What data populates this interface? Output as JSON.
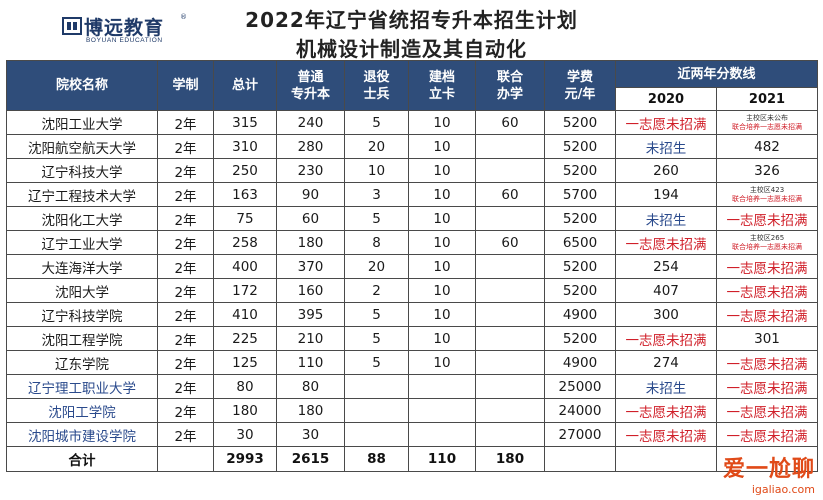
{
  "logo": {
    "name": "博远教育",
    "subtitle": "BOYUAN EDUCATION",
    "mark": "registered-mark"
  },
  "title": {
    "line1": "2022年辽宁省统招专升本招生计划",
    "line2": "机械设计制造及其自动化"
  },
  "header": {
    "school": "院校名称",
    "duration": "学制",
    "total": "总计",
    "regular": [
      "普通",
      "专升本"
    ],
    "veteran": [
      "退役",
      "士兵"
    ],
    "card": [
      "建档",
      "立卡"
    ],
    "joint": [
      "联合",
      "办学"
    ],
    "fee": [
      "学费",
      "元/年"
    ],
    "scores": "近两年分数线",
    "y2020": "2020",
    "y2021": "2021"
  },
  "rows": [
    {
      "school": "沈阳工业大学",
      "duration": "2年",
      "total": "315",
      "regular": "240",
      "veteran": "5",
      "card": "10",
      "joint": "60",
      "fee": "5200",
      "s2020": "一志愿未招满",
      "s2021": "",
      "s2021_note": [
        "主校区未公布",
        "联合培养一志愿未招满"
      ]
    },
    {
      "school": "沈阳航空航天大学",
      "duration": "2年",
      "total": "310",
      "regular": "280",
      "veteran": "20",
      "card": "10",
      "joint": "",
      "fee": "5200",
      "s2020": "未招生",
      "s2021": "482"
    },
    {
      "school": "辽宁科技大学",
      "duration": "2年",
      "total": "250",
      "regular": "230",
      "veteran": "10",
      "card": "10",
      "joint": "",
      "fee": "5200",
      "s2020": "260",
      "s2021": "326"
    },
    {
      "school": "辽宁工程技术大学",
      "duration": "2年",
      "total": "163",
      "regular": "90",
      "veteran": "3",
      "card": "10",
      "joint": "60",
      "fee": "5700",
      "s2020": "194",
      "s2021": "",
      "s2021_note": [
        "主校区423",
        "联合培养一志愿未招满"
      ]
    },
    {
      "school": "沈阳化工大学",
      "duration": "2年",
      "total": "75",
      "regular": "60",
      "veteran": "5",
      "card": "10",
      "joint": "",
      "fee": "5200",
      "s2020": "未招生",
      "s2021": "一志愿未招满"
    },
    {
      "school": "辽宁工业大学",
      "duration": "2年",
      "total": "258",
      "regular": "180",
      "veteran": "8",
      "card": "10",
      "joint": "60",
      "fee": "6500",
      "s2020": "一志愿未招满",
      "s2021": "",
      "s2021_note": [
        "主校区265",
        "联合培养一志愿未招满"
      ]
    },
    {
      "school": "大连海洋大学",
      "duration": "2年",
      "total": "400",
      "regular": "370",
      "veteran": "20",
      "card": "10",
      "joint": "",
      "fee": "5200",
      "s2020": "254",
      "s2021": "一志愿未招满"
    },
    {
      "school": "沈阳大学",
      "duration": "2年",
      "total": "172",
      "regular": "160",
      "veteran": "2",
      "card": "10",
      "joint": "",
      "fee": "5200",
      "s2020": "407",
      "s2021": "一志愿未招满"
    },
    {
      "school": "辽宁科技学院",
      "duration": "2年",
      "total": "410",
      "regular": "395",
      "veteran": "5",
      "card": "10",
      "joint": "",
      "fee": "4900",
      "s2020": "300",
      "s2021": "一志愿未招满"
    },
    {
      "school": "沈阳工程学院",
      "duration": "2年",
      "total": "225",
      "regular": "210",
      "veteran": "5",
      "card": "10",
      "joint": "",
      "fee": "5200",
      "s2020": "一志愿未招满",
      "s2021": "301"
    },
    {
      "school": "辽东学院",
      "duration": "2年",
      "total": "125",
      "regular": "110",
      "veteran": "5",
      "card": "10",
      "joint": "",
      "fee": "4900",
      "s2020": "274",
      "s2021": "一志愿未招满"
    },
    {
      "school": "辽宁理工职业大学",
      "duration": "2年",
      "total": "80",
      "regular": "80",
      "veteran": "",
      "card": "",
      "joint": "",
      "fee": "25000",
      "s2020": "未招生",
      "s2021": "一志愿未招满"
    },
    {
      "school": "沈阳工学院",
      "duration": "2年",
      "total": "180",
      "regular": "180",
      "veteran": "",
      "card": "",
      "joint": "",
      "fee": "24000",
      "s2020": "一志愿未招满",
      "s2021": "一志愿未招满"
    },
    {
      "school": "沈阳城市建设学院",
      "duration": "2年",
      "total": "30",
      "regular": "30",
      "veteran": "",
      "card": "",
      "joint": "",
      "fee": "27000",
      "s2020": "一志愿未招满",
      "s2021": "一志愿未招满"
    }
  ],
  "blue_schools": [
    "辽宁理工职业大学",
    "沈阳工学院",
    "沈阳城市建设学院"
  ],
  "totals": {
    "label": "合计",
    "total": "2993",
    "regular": "2615",
    "veteran": "88",
    "card": "110",
    "joint": "180"
  },
  "watermark": {
    "text": "爱一尬聊",
    "url": "igaliao.com"
  },
  "colors": {
    "header_bg": "#2f4d7a",
    "red_text": "#d0202a",
    "blue_text": "#2a4a8c"
  }
}
